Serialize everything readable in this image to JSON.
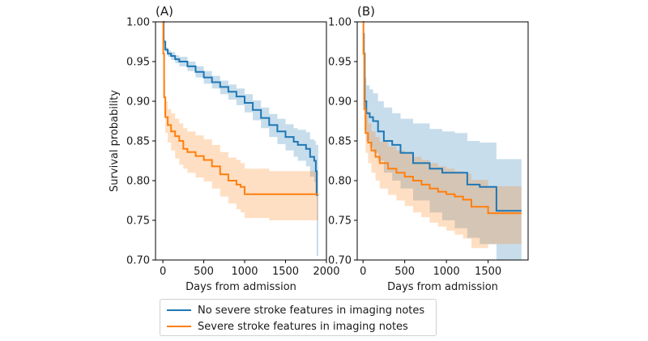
{
  "chart_data": [
    {
      "panel_label": "(A)",
      "type": "line",
      "subtype": "kaplan-meier survival curve with confidence bands",
      "xlabel": "Days from admission",
      "ylabel": "Survival probability",
      "xlim": [
        -90,
        2000
      ],
      "ylim": [
        0.7,
        1.0
      ],
      "xticks": [
        "0",
        "500",
        "1000",
        "1500",
        "2000"
      ],
      "xtick_values": [
        0,
        500,
        1000,
        1500,
        2000
      ],
      "yticks": [
        "0.70",
        "0.75",
        "0.80",
        "0.85",
        "0.90",
        "0.95",
        "1.00"
      ],
      "ytick_values": [
        0.7,
        0.75,
        0.8,
        0.85,
        0.9,
        0.95,
        1.0
      ],
      "series": [
        {
          "name": "No severe stroke features in imaging notes",
          "color": "#1f77b4",
          "x": [
            0,
            10,
            30,
            60,
            100,
            150,
            200,
            300,
            400,
            500,
            600,
            700,
            800,
            900,
            1000,
            1100,
            1200,
            1300,
            1400,
            1500,
            1600,
            1650,
            1750,
            1800,
            1850,
            1870,
            1880,
            1900
          ],
          "y": [
            1.0,
            0.975,
            0.965,
            0.96,
            0.957,
            0.953,
            0.95,
            0.944,
            0.937,
            0.93,
            0.924,
            0.918,
            0.912,
            0.906,
            0.898,
            0.889,
            0.879,
            0.87,
            0.862,
            0.855,
            0.849,
            0.845,
            0.84,
            0.83,
            0.825,
            0.812,
            0.782,
            0.782
          ],
          "ci_lower": [
            1.0,
            0.972,
            0.962,
            0.956,
            0.952,
            0.948,
            0.944,
            0.938,
            0.93,
            0.922,
            0.916,
            0.909,
            0.902,
            0.895,
            0.886,
            0.876,
            0.866,
            0.855,
            0.846,
            0.838,
            0.83,
            0.825,
            0.818,
            0.805,
            0.798,
            0.78,
            0.705,
            0.705
          ],
          "ci_upper": [
            1.0,
            0.978,
            0.968,
            0.964,
            0.962,
            0.958,
            0.956,
            0.95,
            0.944,
            0.938,
            0.932,
            0.926,
            0.921,
            0.916,
            0.909,
            0.901,
            0.892,
            0.884,
            0.878,
            0.871,
            0.866,
            0.864,
            0.861,
            0.852,
            0.85,
            0.845,
            0.845,
            0.845
          ]
        },
        {
          "name": "Severe stroke features in imaging notes",
          "color": "#ff7f0e",
          "x": [
            0,
            5,
            15,
            30,
            60,
            100,
            150,
            200,
            250,
            300,
            400,
            500,
            600,
            700,
            800,
            900,
            950,
            1000,
            1300,
            1900
          ],
          "y": [
            1.0,
            0.96,
            0.905,
            0.88,
            0.87,
            0.862,
            0.856,
            0.85,
            0.84,
            0.836,
            0.831,
            0.826,
            0.818,
            0.808,
            0.8,
            0.795,
            0.792,
            0.783,
            0.783,
            0.783
          ],
          "ci_lower": [
            1.0,
            0.945,
            0.88,
            0.86,
            0.848,
            0.838,
            0.828,
            0.82,
            0.815,
            0.81,
            0.804,
            0.799,
            0.79,
            0.78,
            0.771,
            0.764,
            0.76,
            0.753,
            0.75,
            0.748
          ],
          "ci_upper": [
            1.0,
            0.975,
            0.927,
            0.9,
            0.89,
            0.885,
            0.878,
            0.872,
            0.866,
            0.862,
            0.857,
            0.852,
            0.845,
            0.836,
            0.829,
            0.826,
            0.822,
            0.815,
            0.812,
            0.812
          ]
        }
      ]
    },
    {
      "panel_label": "(B)",
      "type": "line",
      "subtype": "kaplan-meier survival curve with confidence bands",
      "xlabel": "Days from admission",
      "ylabel": "",
      "xlim": [
        -70,
        1980
      ],
      "ylim": [
        0.7,
        1.0
      ],
      "xticks": [
        "0",
        "500",
        "1000",
        "1500"
      ],
      "xtick_values": [
        0,
        500,
        1000,
        1500
      ],
      "yticks": [
        "0.70",
        "0.75",
        "0.80",
        "0.85",
        "0.90",
        "0.95",
        "1.00"
      ],
      "ytick_values": [
        0.7,
        0.75,
        0.8,
        0.85,
        0.9,
        0.95,
        1.0
      ],
      "series": [
        {
          "name": "No severe stroke features in imaging notes",
          "color": "#1f77b4",
          "x": [
            0,
            10,
            20,
            40,
            80,
            120,
            180,
            250,
            350,
            450,
            600,
            800,
            950,
            1100,
            1250,
            1400,
            1600,
            1900
          ],
          "y": [
            0.985,
            0.96,
            0.9,
            0.885,
            0.88,
            0.875,
            0.862,
            0.85,
            0.845,
            0.835,
            0.822,
            0.815,
            0.81,
            0.81,
            0.795,
            0.792,
            0.762,
            0.762
          ],
          "ci_lower": [
            0.96,
            0.93,
            0.865,
            0.85,
            0.842,
            0.835,
            0.825,
            0.81,
            0.8,
            0.79,
            0.775,
            0.76,
            0.75,
            0.74,
            0.728,
            0.72,
            0.7,
            0.7
          ],
          "ci_upper": [
            1.0,
            0.985,
            0.93,
            0.92,
            0.915,
            0.91,
            0.9,
            0.892,
            0.885,
            0.878,
            0.872,
            0.865,
            0.862,
            0.86,
            0.85,
            0.848,
            0.827,
            0.827
          ]
        },
        {
          "name": "Severe stroke features in imaging notes",
          "color": "#ff7f0e",
          "x": [
            0,
            5,
            15,
            30,
            60,
            100,
            150,
            200,
            300,
            400,
            500,
            600,
            700,
            800,
            900,
            1000,
            1100,
            1200,
            1300,
            1500,
            1900
          ],
          "y": [
            1.0,
            0.96,
            0.89,
            0.86,
            0.848,
            0.838,
            0.83,
            0.822,
            0.815,
            0.81,
            0.805,
            0.8,
            0.795,
            0.79,
            0.786,
            0.783,
            0.78,
            0.776,
            0.767,
            0.759,
            0.759
          ],
          "ci_lower": [
            1.0,
            0.94,
            0.865,
            0.835,
            0.822,
            0.81,
            0.8,
            0.79,
            0.782,
            0.775,
            0.768,
            0.76,
            0.754,
            0.747,
            0.742,
            0.737,
            0.732,
            0.727,
            0.715,
            0.72,
            0.72
          ],
          "ci_upper": [
            1.0,
            0.975,
            0.915,
            0.885,
            0.872,
            0.862,
            0.855,
            0.849,
            0.843,
            0.838,
            0.834,
            0.83,
            0.826,
            0.822,
            0.818,
            0.815,
            0.812,
            0.809,
            0.801,
            0.793,
            0.793
          ]
        }
      ]
    }
  ],
  "legend": {
    "items": [
      {
        "label": "No severe stroke features in imaging notes",
        "color": "#1f77b4"
      },
      {
        "label": "Severe stroke features in imaging notes",
        "color": "#ff7f0e"
      }
    ]
  }
}
